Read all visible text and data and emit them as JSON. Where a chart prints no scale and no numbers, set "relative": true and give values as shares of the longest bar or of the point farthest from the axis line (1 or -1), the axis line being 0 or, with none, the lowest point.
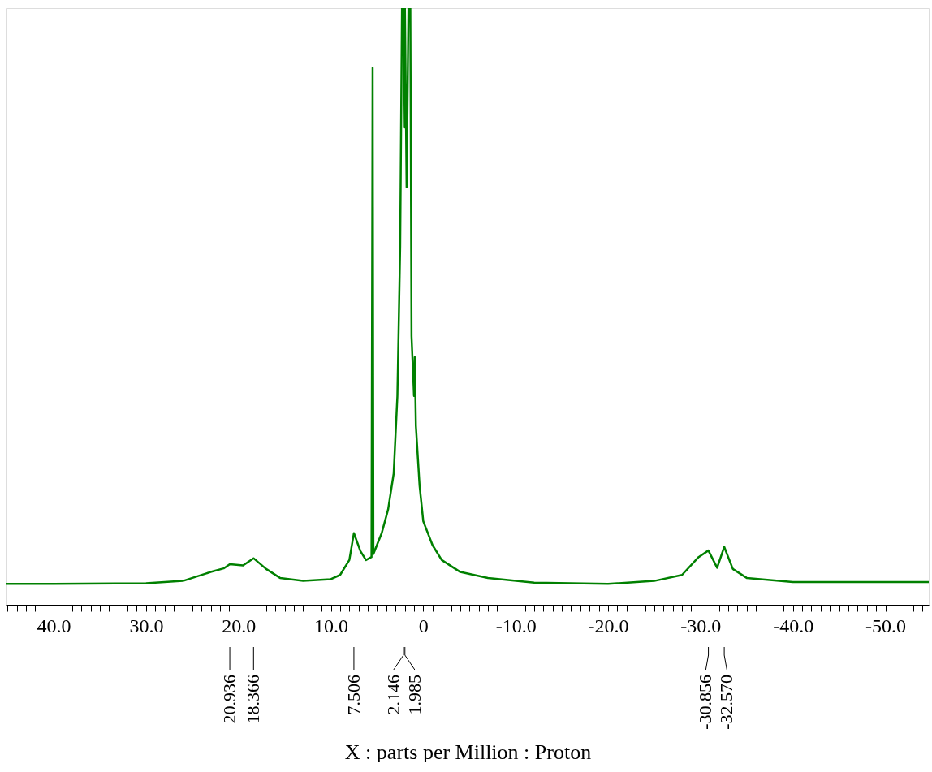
{
  "chart_data": {
    "type": "line",
    "relative": true,
    "xlabel": "X : parts per Million : Proton",
    "xlim": [
      45.1,
      -54.7
    ],
    "xticks": [
      {
        "value": 45,
        "label": null
      },
      {
        "value": 44,
        "label": null
      },
      {
        "value": 43,
        "label": null
      },
      {
        "value": 42,
        "label": null
      },
      {
        "value": 41,
        "label": null
      },
      {
        "value": 40,
        "label": "40.0"
      },
      {
        "value": 39,
        "label": null
      },
      {
        "value": 38,
        "label": null
      },
      {
        "value": 37,
        "label": null
      },
      {
        "value": 36,
        "label": null
      },
      {
        "value": 35,
        "label": null
      },
      {
        "value": 34,
        "label": null
      },
      {
        "value": 33,
        "label": null
      },
      {
        "value": 32,
        "label": null
      },
      {
        "value": 31,
        "label": null
      },
      {
        "value": 30,
        "label": "30.0"
      },
      {
        "value": 29,
        "label": null
      },
      {
        "value": 28,
        "label": null
      },
      {
        "value": 27,
        "label": null
      },
      {
        "value": 26,
        "label": null
      },
      {
        "value": 25,
        "label": null
      },
      {
        "value": 24,
        "label": null
      },
      {
        "value": 23,
        "label": null
      },
      {
        "value": 22,
        "label": null
      },
      {
        "value": 21,
        "label": null
      },
      {
        "value": 20,
        "label": "20.0"
      },
      {
        "value": 19,
        "label": null
      },
      {
        "value": 18,
        "label": null
      },
      {
        "value": 17,
        "label": null
      },
      {
        "value": 16,
        "label": null
      },
      {
        "value": 15,
        "label": null
      },
      {
        "value": 14,
        "label": null
      },
      {
        "value": 13,
        "label": null
      },
      {
        "value": 12,
        "label": null
      },
      {
        "value": 11,
        "label": null
      },
      {
        "value": 10,
        "label": "10.0"
      },
      {
        "value": 9,
        "label": null
      },
      {
        "value": 8,
        "label": null
      },
      {
        "value": 7,
        "label": null
      },
      {
        "value": 6,
        "label": null
      },
      {
        "value": 5,
        "label": null
      },
      {
        "value": 4,
        "label": null
      },
      {
        "value": 3,
        "label": null
      },
      {
        "value": 2,
        "label": null
      },
      {
        "value": 1,
        "label": null
      },
      0,
      {
        "value": -1,
        "label": null
      },
      {
        "value": -2,
        "label": null
      },
      {
        "value": -3,
        "label": null
      },
      {
        "value": -4,
        "label": null
      },
      {
        "value": -5,
        "label": null
      },
      {
        "value": -6,
        "label": null
      },
      {
        "value": -7,
        "label": null
      },
      {
        "value": -8,
        "label": null
      },
      {
        "value": -9,
        "label": null
      },
      {
        "value": -10,
        "label": "-10.0"
      },
      {
        "value": -11,
        "label": null
      },
      {
        "value": -12,
        "label": null
      },
      {
        "value": -13,
        "label": null
      },
      {
        "value": -14,
        "label": null
      },
      {
        "value": -15,
        "label": null
      },
      {
        "value": -16,
        "label": null
      },
      {
        "value": -17,
        "label": null
      },
      {
        "value": -18,
        "label": null
      },
      {
        "value": -19,
        "label": null
      },
      {
        "value": -20,
        "label": "-20.0"
      },
      {
        "value": -21,
        "label": null
      },
      {
        "value": -22,
        "label": null
      },
      {
        "value": -23,
        "label": null
      },
      {
        "value": -24,
        "label": null
      },
      {
        "value": -25,
        "label": null
      },
      {
        "value": -26,
        "label": null
      },
      {
        "value": -27,
        "label": null
      },
      {
        "value": -28,
        "label": null
      },
      {
        "value": -29,
        "label": null
      },
      {
        "value": -30,
        "label": "-30.0"
      },
      {
        "value": -31,
        "label": null
      },
      {
        "value": -32,
        "label": null
      },
      {
        "value": -33,
        "label": null
      },
      {
        "value": -34,
        "label": null
      },
      {
        "value": -35,
        "label": null
      },
      {
        "value": -36,
        "label": null
      },
      {
        "value": -37,
        "label": null
      },
      {
        "value": -38,
        "label": null
      },
      {
        "value": -39,
        "label": null
      },
      {
        "value": -40,
        "label": "-40.0"
      },
      {
        "value": -41,
        "label": null
      },
      {
        "value": -42,
        "label": null
      },
      {
        "value": -43,
        "label": null
      },
      {
        "value": -44,
        "label": null
      },
      {
        "value": -45,
        "label": null
      },
      {
        "value": -46,
        "label": null
      },
      {
        "value": -47,
        "label": null
      },
      {
        "value": -48,
        "label": null
      },
      {
        "value": -49,
        "label": null
      },
      {
        "value": -50,
        "label": "-50.0"
      },
      {
        "value": -51,
        "label": null
      },
      {
        "value": -52,
        "label": null
      },
      {
        "value": -53,
        "label": null
      },
      {
        "value": -54,
        "label": null
      }
    ],
    "series": [
      {
        "color": "#008000",
        "x": [
          45.1,
          40,
          30,
          26,
          23,
          21.6,
          20.936,
          19.5,
          18.366,
          17,
          15.5,
          13,
          10,
          9,
          8,
          7.506,
          6.8,
          6.2,
          5.6,
          5.48,
          5.4,
          4.5,
          3.8,
          3.2,
          2.8,
          2.5,
          2.3,
          2.146,
          2.0,
          1.985,
          1.8,
          1.6,
          1.4,
          1.27,
          1.0,
          0.92,
          0.8,
          0.4,
          0,
          -1,
          -2,
          -4,
          -7,
          -12,
          -20,
          -25,
          -28,
          -29.8,
          -30.856,
          -31.8,
          -32.57,
          -33.5,
          -35,
          -40,
          -54.7
        ],
        "values": [
          0.035,
          0.035,
          0.036,
          0.04,
          0.055,
          0.061,
          0.068,
          0.066,
          0.078,
          0.06,
          0.045,
          0.04,
          0.043,
          0.05,
          0.075,
          0.12,
          0.09,
          0.075,
          0.08,
          0.9,
          0.085,
          0.12,
          0.16,
          0.22,
          0.35,
          0.6,
          1.0,
          1.0,
          0.8,
          1.0,
          0.7,
          1.0,
          1.0,
          0.45,
          0.35,
          0.415,
          0.3,
          0.2,
          0.14,
          0.1,
          0.075,
          0.055,
          0.045,
          0.037,
          0.035,
          0.04,
          0.05,
          0.08,
          0.091,
          0.062,
          0.097,
          0.06,
          0.045,
          0.038,
          0.038
        ]
      }
    ],
    "annotations": [
      {
        "text": "20.936",
        "x": 20.936
      },
      {
        "text": "18.366",
        "x": 18.366
      },
      {
        "text": "7.506",
        "x": 7.506
      },
      {
        "text": "2.146",
        "x": 2.146
      },
      {
        "text": "1.985",
        "x": 1.985
      },
      {
        "text": "-30.856",
        "x": -30.856
      },
      {
        "text": "-32.570",
        "x": -32.57
      }
    ]
  }
}
